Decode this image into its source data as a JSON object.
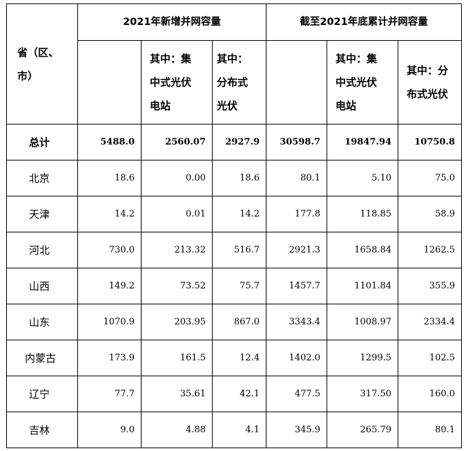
{
  "header": {
    "province_label": "省（区、\n市）",
    "group_new": "2021年新增并网容量",
    "group_cum": "截至2021年底累计并网容量",
    "sub_total": "",
    "sub_central": "其中：集\n中式光伏\n电站",
    "sub_distributed": "其中：\n分布式\n光伏",
    "cum_sub_total": "",
    "cum_sub_central": "其中：集\n中式光伏\n电站",
    "cum_sub_distributed": "其中：分\n布式光伏"
  },
  "rows": [
    {
      "province": "总计",
      "new_total": "5488.0",
      "new_central": "2560.07",
      "new_distributed": "2927.9",
      "cum_total": "30598.7",
      "cum_central": "19847.94",
      "cum_distributed": "10750.8"
    },
    {
      "province": "北京",
      "new_total": "18.6",
      "new_central": "0.00",
      "new_distributed": "18.6",
      "cum_total": "80.1",
      "cum_central": "5.10",
      "cum_distributed": "75.0"
    },
    {
      "province": "天津",
      "new_total": "14.2",
      "new_central": "0.01",
      "new_distributed": "14.2",
      "cum_total": "177.8",
      "cum_central": "118.85",
      "cum_distributed": "58.9"
    },
    {
      "province": "河北",
      "new_total": "730.0",
      "new_central": "213.32",
      "new_distributed": "516.7",
      "cum_total": "2921.3",
      "cum_central": "1658.84",
      "cum_distributed": "1262.5"
    },
    {
      "province": "山西",
      "new_total": "149.2",
      "new_central": "73.52",
      "new_distributed": "75.7",
      "cum_total": "1457.7",
      "cum_central": "1101.84",
      "cum_distributed": "355.9"
    },
    {
      "province": "山东",
      "new_total": "1070.9",
      "new_central": "203.95",
      "new_distributed": "867.0",
      "cum_total": "3343.4",
      "cum_central": "1008.97",
      "cum_distributed": "2334.4"
    },
    {
      "province": "内蒙古",
      "new_total": "173.9",
      "new_central": "161.5",
      "new_distributed": "12.4",
      "cum_total": "1402.0",
      "cum_central": "1299.5",
      "cum_distributed": "102.5"
    },
    {
      "province": "辽宁",
      "new_total": "77.7",
      "new_central": "35.61",
      "new_distributed": "42.1",
      "cum_total": "477.5",
      "cum_central": "317.50",
      "cum_distributed": "160.0"
    },
    {
      "province": "吉林",
      "new_total": "9.0",
      "new_central": "4.88",
      "new_distributed": "4.1",
      "cum_total": "345.9",
      "cum_central": "265.79",
      "cum_distributed": "80.1"
    }
  ]
}
